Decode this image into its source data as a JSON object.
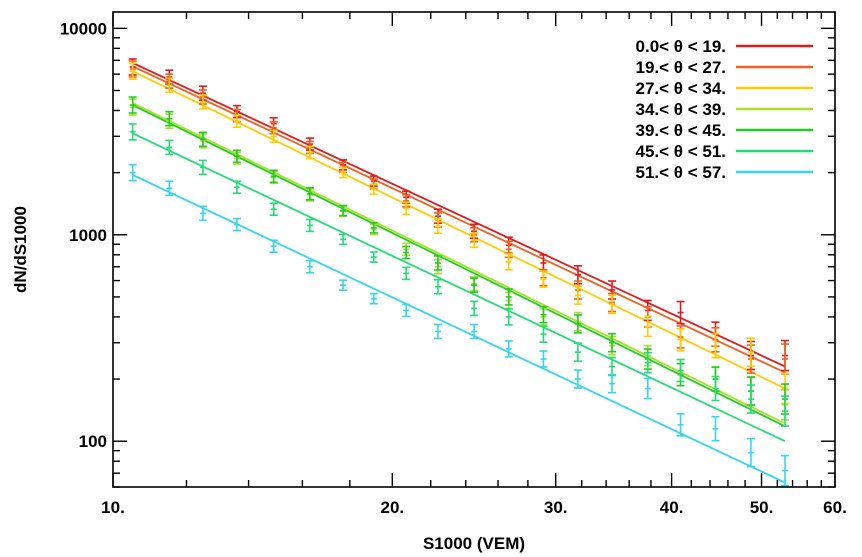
{
  "chart_data": {
    "type": "scatter",
    "title": "",
    "xlabel": "S1000 (VEM)",
    "ylabel": "dN/dS1000",
    "xscale": "log",
    "yscale": "log",
    "xlim": [
      10,
      60
    ],
    "ylim": [
      60,
      12000
    ],
    "x_ticks": [
      {
        "value": 10,
        "label": "10."
      },
      {
        "value": 20,
        "label": "20."
      },
      {
        "value": 30,
        "label": "30."
      },
      {
        "value": 40,
        "label": "40."
      },
      {
        "value": 50,
        "label": "50."
      },
      {
        "value": 60,
        "label": "60."
      }
    ],
    "y_ticks": [
      {
        "value": 100,
        "label": "100"
      },
      {
        "value": 1000,
        "label": "1000"
      },
      {
        "value": 10000,
        "label": "10000"
      }
    ],
    "legend_position": "top-right",
    "x": [
      10.5,
      11.5,
      12.5,
      13.6,
      14.9,
      16.3,
      17.7,
      19.1,
      20.7,
      22.4,
      24.5,
      26.7,
      29.1,
      31.7,
      34.5,
      37.7,
      40.9,
      44.6,
      48.7,
      53.0
    ],
    "series": [
      {
        "name": "0.0< θ < 19.",
        "color": "#e31a1c",
        "fit": {
          "x": [
            10.5,
            53.0
          ],
          "y": [
            6800,
            230
          ]
        },
        "y": [
          6500,
          5800,
          4850,
          3950,
          3450,
          2750,
          2180,
          1820,
          1520,
          1230,
          1040,
          890,
          730,
          640,
          540,
          430,
          420,
          330,
          260,
          260
        ],
        "err": [
          8,
          7,
          7,
          6,
          6,
          6,
          5,
          5,
          6,
          7,
          7,
          8,
          8,
          9,
          9,
          10,
          11,
          12,
          14,
          15
        ]
      },
      {
        "name": "19.< θ < 27.",
        "color": "#f06020",
        "fit": {
          "x": [
            10.5,
            53.0
          ],
          "y": [
            6550,
            215
          ]
        },
        "y": [
          6350,
          5550,
          4650,
          3780,
          3300,
          2650,
          2120,
          1760,
          1460,
          1180,
          1000,
          850,
          620,
          540,
          470,
          400,
          320,
          310,
          250,
          250
        ],
        "err": [
          8,
          7,
          7,
          6,
          6,
          6,
          5,
          5,
          6,
          7,
          7,
          8,
          8,
          9,
          9,
          10,
          11,
          12,
          14,
          15
        ]
      },
      {
        "name": "27.< θ < 34.",
        "color": "#ffcc00",
        "fit": {
          "x": [
            10.5,
            53.0
          ],
          "y": [
            6200,
            180
          ]
        },
        "y": [
          6200,
          5300,
          4400,
          3550,
          3000,
          2500,
          2000,
          1660,
          1340,
          1100,
          940,
          740,
          610,
          510,
          460,
          360,
          310,
          290,
          270,
          180
        ],
        "err": [
          8,
          7,
          7,
          6,
          6,
          6,
          5,
          5,
          6,
          7,
          7,
          8,
          8,
          9,
          9,
          10,
          11,
          12,
          14,
          15
        ]
      },
      {
        "name": "34.< θ < 39.",
        "color": "#a8e02a",
        "fit": {
          "x": [
            10.5,
            53.0
          ],
          "y": [
            4350,
            122
          ]
        },
        "y": [
          4150,
          3550,
          2850,
          2350,
          1900,
          1560,
          1300,
          1060,
          850,
          700,
          580,
          480,
          400,
          380,
          290,
          260,
          220,
          200,
          175,
          150
        ],
        "err": [
          8,
          7,
          7,
          6,
          6,
          6,
          5,
          5,
          6,
          7,
          7,
          8,
          8,
          9,
          9,
          10,
          11,
          12,
          14,
          15
        ]
      },
      {
        "name": "39.< θ < 45.",
        "color": "#22cc22",
        "fit": {
          "x": [
            10.5,
            53.0
          ],
          "y": [
            4250,
            118
          ]
        },
        "y": [
          4250,
          3650,
          2900,
          2400,
          1920,
          1580,
          1310,
          1080,
          820,
          730,
          570,
          500,
          410,
          370,
          300,
          250,
          210,
          200,
          175,
          160
        ],
        "err": [
          8,
          7,
          7,
          6,
          6,
          6,
          5,
          5,
          6,
          7,
          7,
          8,
          8,
          9,
          9,
          10,
          11,
          12,
          14,
          15
        ]
      },
      {
        "name": "45.< θ < 51.",
        "color": "#22dd77",
        "fit": {
          "x": [
            10.5,
            53.0
          ],
          "y": [
            3100,
            100
          ]
        },
        "y": [
          3150,
          2650,
          2120,
          1700,
          1330,
          1110,
          950,
          780,
          650,
          560,
          440,
          400,
          330,
          270,
          230,
          240,
          220,
          180,
          160,
          140
        ],
        "err": [
          8,
          7,
          7,
          6,
          6,
          6,
          5,
          5,
          6,
          7,
          7,
          8,
          8,
          9,
          9,
          10,
          11,
          12,
          14,
          15
        ]
      },
      {
        "name": "51.< θ < 57.",
        "color": "#33d6ee",
        "fit": {
          "x": [
            10.5,
            53.0
          ],
          "y": [
            1950,
            63
          ]
        },
        "y": [
          2000,
          1680,
          1270,
          1120,
          880,
          700,
          570,
          490,
          430,
          340,
          340,
          280,
          250,
          200,
          190,
          180,
          120,
          115,
          88,
          72
        ],
        "err": [
          8,
          7,
          7,
          6,
          6,
          6,
          5,
          5,
          6,
          7,
          7,
          8,
          8,
          9,
          9,
          10,
          11,
          12,
          14,
          15
        ]
      }
    ]
  }
}
